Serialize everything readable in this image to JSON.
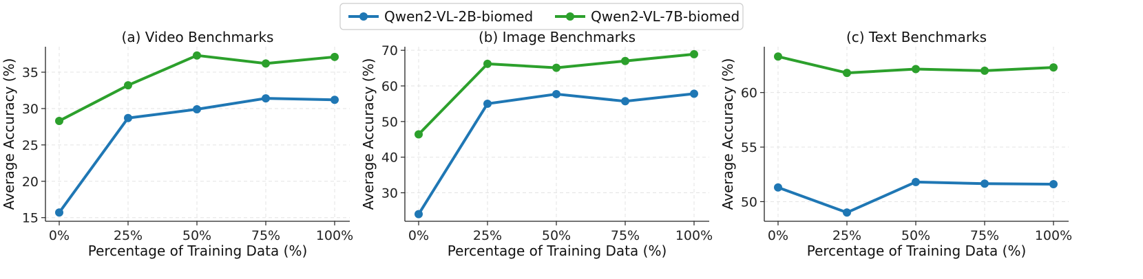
{
  "legend": {
    "entries": [
      {
        "name": "Qwen2-VL-2B-biomed",
        "color": "#1f77b4"
      },
      {
        "name": "Qwen2-VL-7B-biomed",
        "color": "#2ca02c"
      }
    ]
  },
  "chart_data": [
    {
      "type": "line",
      "title": "(a) Video Benchmarks",
      "xlabel": "Percentage of Training Data (%)",
      "ylabel": "Average Accuracy (%)",
      "categories": [
        "0%",
        "25%",
        "50%",
        "75%",
        "100%"
      ],
      "ylim": [
        14.5,
        38.5
      ],
      "yticks": [
        15,
        20,
        25,
        30,
        35
      ],
      "grid": true,
      "series": [
        {
          "name": "Qwen2-VL-2B-biomed",
          "color": "#1f77b4",
          "values": [
            15.7,
            28.7,
            29.9,
            31.4,
            31.2
          ]
        },
        {
          "name": "Qwen2-VL-7B-biomed",
          "color": "#2ca02c",
          "values": [
            28.3,
            33.2,
            37.3,
            36.2,
            37.1
          ]
        }
      ]
    },
    {
      "type": "line",
      "title": "(b) Image Benchmarks",
      "xlabel": "Percentage of Training Data (%)",
      "ylabel": "Average Accuracy (%)",
      "categories": [
        "0%",
        "25%",
        "50%",
        "75%",
        "100%"
      ],
      "ylim": [
        22,
        71
      ],
      "yticks": [
        30,
        40,
        50,
        60,
        70
      ],
      "grid": true,
      "series": [
        {
          "name": "Qwen2-VL-2B-biomed",
          "color": "#1f77b4",
          "values": [
            24.0,
            55.0,
            57.7,
            55.7,
            57.8
          ]
        },
        {
          "name": "Qwen2-VL-7B-biomed",
          "color": "#2ca02c",
          "values": [
            46.4,
            66.2,
            65.1,
            67.0,
            68.9
          ]
        }
      ]
    },
    {
      "type": "line",
      "title": "(c) Text Benchmarks",
      "xlabel": "Percentage of Training Data (%)",
      "ylabel": "Average Accuracy (%)",
      "categories": [
        "0%",
        "25%",
        "50%",
        "75%",
        "100%"
      ],
      "ylim": [
        48.2,
        64.2
      ],
      "yticks": [
        50,
        55,
        60
      ],
      "grid": true,
      "series": [
        {
          "name": "Qwen2-VL-2B-biomed",
          "color": "#1f77b4",
          "values": [
            51.3,
            49.0,
            51.8,
            51.65,
            51.6
          ]
        },
        {
          "name": "Qwen2-VL-7B-biomed",
          "color": "#2ca02c",
          "values": [
            63.3,
            61.8,
            62.15,
            62.0,
            62.3
          ]
        }
      ]
    }
  ]
}
